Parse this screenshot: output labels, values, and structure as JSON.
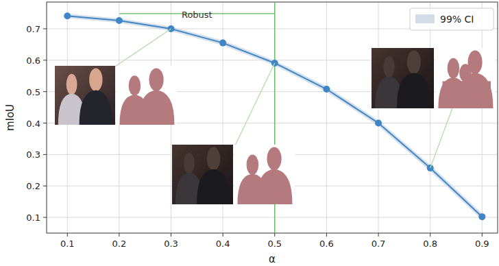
{
  "chart_data": {
    "type": "line",
    "x_label": "α",
    "y_label": "mIoU",
    "x": [
      0.1,
      0.2,
      0.3,
      0.4,
      0.5,
      0.6,
      0.7,
      0.8,
      0.9
    ],
    "series": [
      {
        "color": "#3f86c6",
        "marker": "circle",
        "line_style": "solid",
        "values": [
          0.741,
          0.726,
          0.7,
          0.655,
          0.591,
          0.508,
          0.4,
          0.257,
          0.102
        ],
        "ci": [
          0.007,
          0.007,
          0.007,
          0.008,
          0.008,
          0.009,
          0.009,
          0.01,
          0.01
        ],
        "ci_name": "99% CI",
        "ci_color": "#d2dde8"
      }
    ],
    "xlim": [
      0.06,
      0.93
    ],
    "ylim": [
      0.05,
      0.785
    ],
    "xticks": [
      0.1,
      0.2,
      0.3,
      0.4,
      0.5,
      0.6,
      0.7,
      0.8,
      0.9
    ],
    "yticks": [
      0.1,
      0.2,
      0.3,
      0.4,
      0.5,
      0.6,
      0.7
    ],
    "grid": true,
    "legend": "upper right",
    "annotations": [
      {
        "text": "Robust",
        "x": [
          0.2,
          0.5
        ],
        "y": 0.748,
        "color": "#5cb85c"
      }
    ],
    "vline": {
      "x": 0.5,
      "color": "#5cb85c"
    }
  }
}
